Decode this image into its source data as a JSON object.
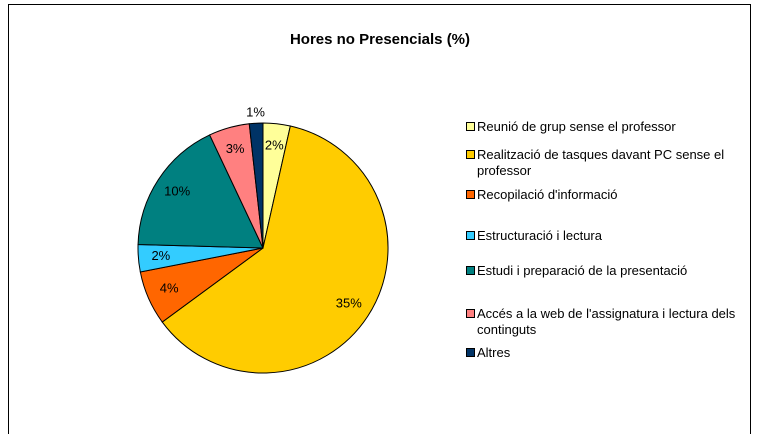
{
  "chart_data": {
    "type": "pie",
    "title": "Hores no Presencials (%)",
    "categories": [
      "Reunió de grup sense el professor",
      "Realització de tasques davant PC sense el professor",
      "Recopilació d'informació",
      "Estructuració i lectura",
      "Estudi i preparació de la presentació",
      "Accés a la web de l'assignatura i lectura dels continguts",
      "Altres"
    ],
    "values": [
      2,
      35,
      4,
      2,
      10,
      3,
      1
    ],
    "value_labels": [
      "2%",
      "35%",
      "4%",
      "2%",
      "10%",
      "3%",
      "1%"
    ],
    "colors": [
      "#FFFF99",
      "#FFCC00",
      "#FF6600",
      "#33CCFF",
      "#008080",
      "#FF8080",
      "#003366"
    ],
    "legend": "right"
  }
}
